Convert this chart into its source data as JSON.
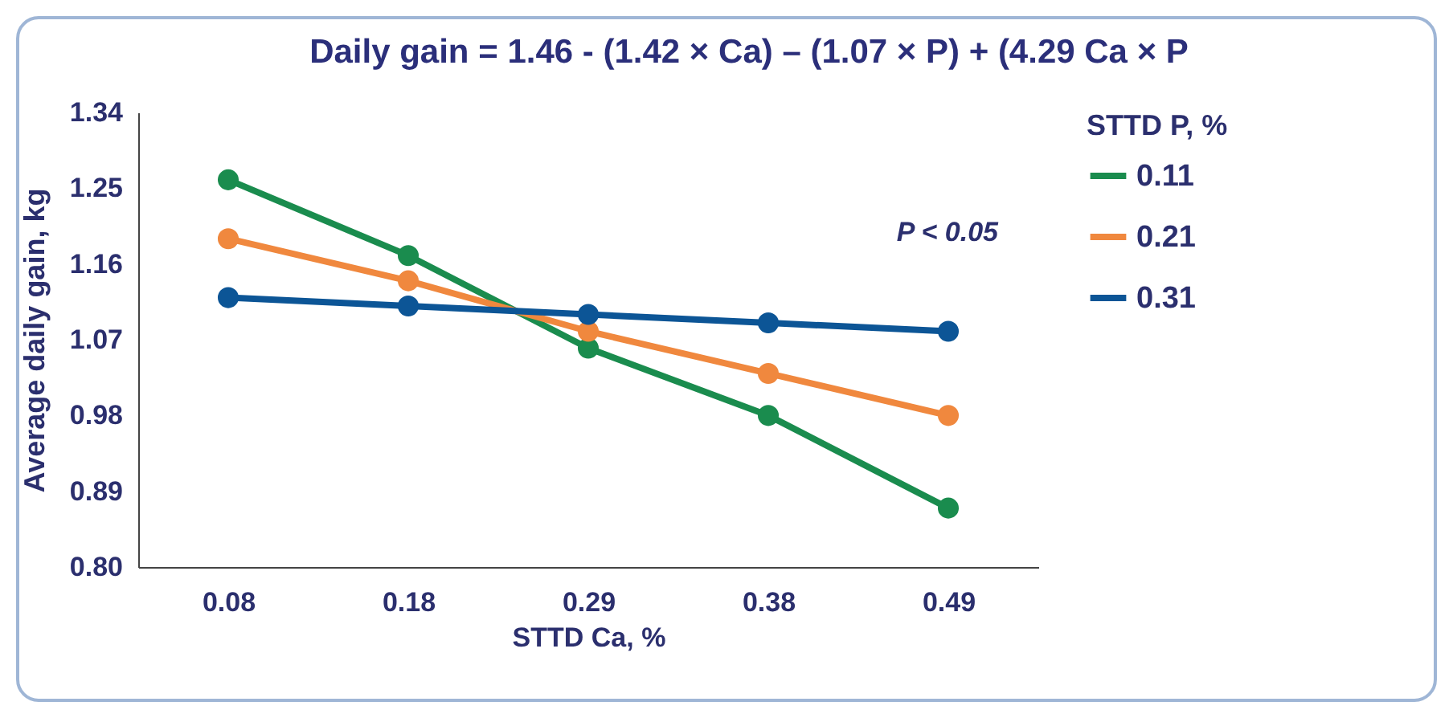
{
  "chart_data": {
    "type": "line",
    "title": "Daily gain = 1.46 - (1.42 × Ca) – (1.07 × P) + (4.29 Ca × P",
    "xlabel": "STTD Ca, %",
    "ylabel": "Average daily gain, kg",
    "legend_title": "STTD P, %",
    "annotations": [
      "P < 0.05"
    ],
    "categories": [
      "0.08",
      "0.18",
      "0.29",
      "0.38",
      "0.49"
    ],
    "ylim": [
      0.8,
      1.34
    ],
    "yticks": [
      {
        "value": 0.8,
        "label": "0.80"
      },
      0.89,
      0.98,
      1.07,
      1.16,
      1.25,
      1.34
    ],
    "grid": false,
    "legend": "right",
    "marker": "circle",
    "line_style": "solid",
    "series": [
      {
        "name": "0.11",
        "color": "#1a8c4e",
        "values": [
          1.26,
          1.17,
          1.06,
          0.98,
          0.87
        ]
      },
      {
        "name": "0.21",
        "color": "#f0883e",
        "values": [
          1.19,
          1.14,
          1.08,
          1.03,
          0.98
        ]
      },
      {
        "name": "0.31",
        "color": "#0c5596",
        "values": [
          1.12,
          1.11,
          1.1,
          1.09,
          1.08
        ]
      }
    ]
  }
}
